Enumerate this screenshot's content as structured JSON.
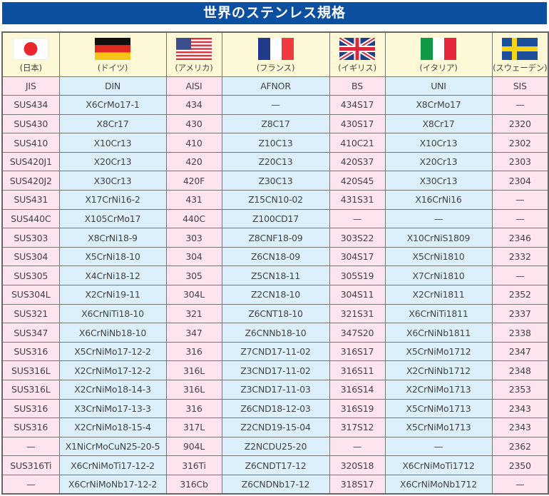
{
  "title": "世界のステンレス規格",
  "countries": [
    {
      "name": "(日本)",
      "flag": "japan-flag-icon",
      "standard": "JIS"
    },
    {
      "name": "(ドイツ)",
      "flag": "germany-flag-icon",
      "standard": "DIN"
    },
    {
      "name": "(アメリカ)",
      "flag": "usa-flag-icon",
      "standard": "AISI"
    },
    {
      "name": "(フランス)",
      "flag": "france-flag-icon",
      "standard": "AFNOR"
    },
    {
      "name": "(イギリス)",
      "flag": "uk-flag-icon",
      "standard": "BS"
    },
    {
      "name": "(イタリア)",
      "flag": "italy-flag-icon",
      "standard": "UNI"
    },
    {
      "name": "(スウェーデン)",
      "flag": "sweden-flag-icon",
      "standard": "SIS"
    }
  ],
  "rows": [
    [
      "SUS434",
      "X6CrMo17-1",
      "434",
      "—",
      "434S17",
      "X8CrMo17",
      "—"
    ],
    [
      "SUS430",
      "X8Cr17",
      "430",
      "Z8C17",
      "430S17",
      "X8Cr17",
      "2320"
    ],
    [
      "SUS410",
      "X10Cr13",
      "410",
      "Z10C13",
      "410C21",
      "X10Cr13",
      "2302"
    ],
    [
      "SUS420J1",
      "X20Cr13",
      "420",
      "Z20C13",
      "420S37",
      "X20Cr13",
      "2303"
    ],
    [
      "SUS420J2",
      "X30Cr13",
      "420F",
      "Z30C13",
      "420S45",
      "X30Cr13",
      "2304"
    ],
    [
      "SUS431",
      "X17CrNi16-2",
      "431",
      "Z15CN10-02",
      "431S31",
      "X16CrNi16",
      "—"
    ],
    [
      "SUS440C",
      "X105CrMo17",
      "440C",
      "Z100CD17",
      "—",
      "—",
      "—"
    ],
    [
      "SUS303",
      "X8CrNi18-9",
      "303",
      "Z8CNF18-09",
      "303S22",
      "X10CrNiS1809",
      "2346"
    ],
    [
      "SUS304",
      "X5CrNi18-10",
      "304",
      "Z6CN18-09",
      "304S17",
      "X5CrNi1810",
      "2332"
    ],
    [
      "SUS305",
      "X4CrNi18-12",
      "305",
      "Z5CN18-11",
      "305S19",
      "X7CrNi1810",
      "—"
    ],
    [
      "SUS304L",
      "X2CrNi19-11",
      "304L",
      "Z2CN18-10",
      "304S11",
      "X2CrNi1811",
      "2352"
    ],
    [
      "SUS321",
      "X6CrNiTi18-10",
      "321",
      "Z6CNT18-10",
      "321S31",
      "X6CrNiTi1811",
      "2337"
    ],
    [
      "SUS347",
      "X6CrNiNb18-10",
      "347",
      "Z6CNNb18-10",
      "347S20",
      "X6CrNiNb1811",
      "2338"
    ],
    [
      "SUS316",
      "X5CrNiMo17-12-2",
      "316",
      "Z7CND17-11-02",
      "316S17",
      "X5CrNiMo1712",
      "2347"
    ],
    [
      "SUS316L",
      "X2CrNiMo17-12-2",
      "316L",
      "Z3CND17-11-02",
      "316S11",
      "X2CrNiNb1712",
      "2348"
    ],
    [
      "SUS316L",
      "X2CrNiMo18-14-3",
      "316L",
      "Z3CND17-11-03",
      "316S14",
      "X2CrNiMo1713",
      "2353"
    ],
    [
      "SUS316",
      "X3CrNiMo17-13-3",
      "316",
      "Z6CND18-12-03",
      "316S19",
      "X5CrNiMo1713",
      "2343"
    ],
    [
      "SUS316",
      "X2CrNiMo18-15-4",
      "317L",
      "Z2CND19-15-04",
      "317S12",
      "X5CrNiMo1713",
      "2343"
    ],
    [
      "—",
      "X1NiCrMoCuN25-20-5",
      "904L",
      "Z2NCDU25-20",
      "—",
      "—",
      "2362"
    ],
    [
      "SUS316Ti",
      "X6CrNiMoTi17-12-2",
      "316Ti",
      "Z6CNDT17-12",
      "320S18",
      "X6CrNiMoTi1712",
      "2350"
    ],
    [
      "—",
      "X6CrNiMoNb17-12-2",
      "316Cb",
      "Z6CNDNb17-12",
      "318S17",
      "X6CrNiMoNb1712",
      "—"
    ]
  ],
  "colors": {
    "title_bar": "#0b4fa0",
    "pink_column": "#fde4ee",
    "blue_column": "#dcf0fb",
    "flag_row": "#fdf8d6"
  }
}
